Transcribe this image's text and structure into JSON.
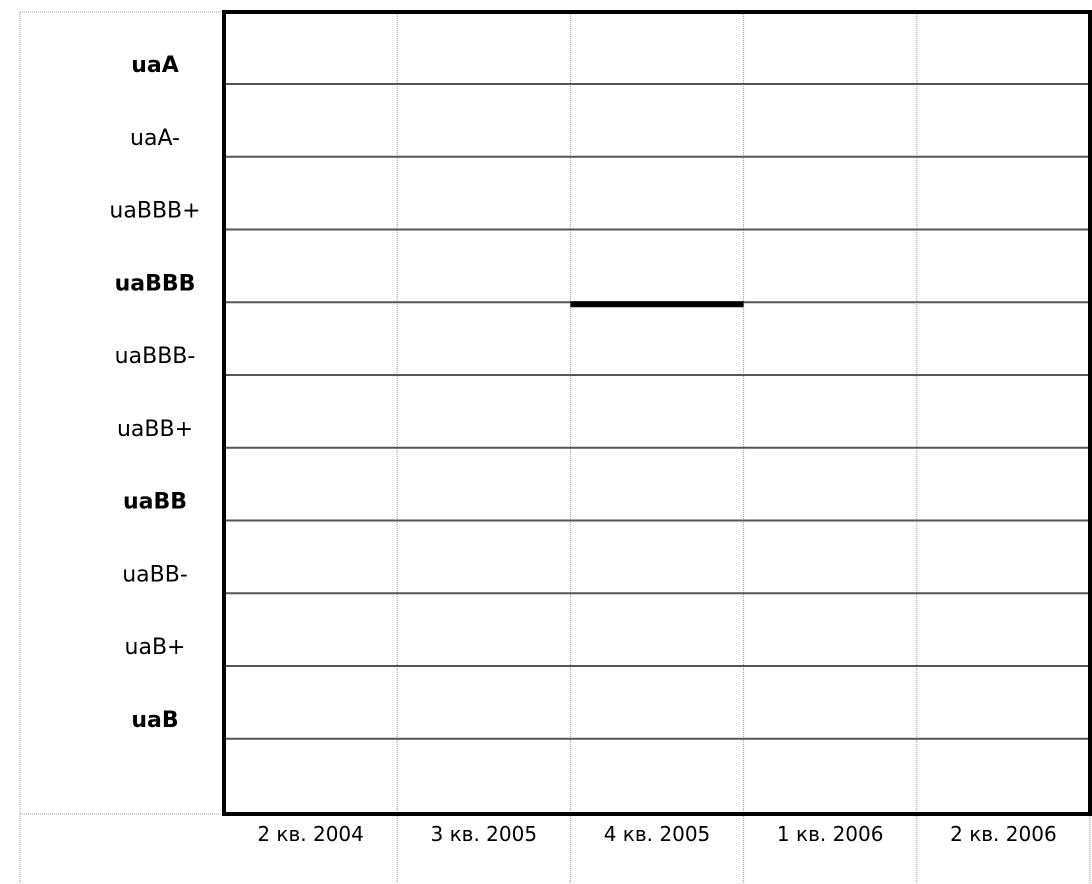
{
  "chart_data": {
    "type": "line",
    "categories": [
      "2 кв. 2004",
      "3 кв. 2005",
      "4 кв. 2005",
      "1 кв. 2006",
      "2 кв. 2006"
    ],
    "y_scale": [
      {
        "label": "uaA",
        "major": true
      },
      {
        "label": "uaA-",
        "major": false
      },
      {
        "label": "uaBBB+",
        "major": false
      },
      {
        "label": "uaBBB",
        "major": true
      },
      {
        "label": "uaBBB-",
        "major": false
      },
      {
        "label": "uaBB+",
        "major": false
      },
      {
        "label": "uaBB",
        "major": true
      },
      {
        "label": "uaBB-",
        "major": false
      },
      {
        "label": "uaB+",
        "major": false
      },
      {
        "label": "uaB",
        "major": true
      }
    ],
    "series": [
      {
        "segments": [
          {
            "category": "4 кв. 2005",
            "rating": "uaBBB"
          }
        ]
      }
    ],
    "grid": true,
    "legend": "none",
    "colors": {
      "frame": "#000000",
      "grid": "#999999",
      "series": "#000000"
    }
  }
}
